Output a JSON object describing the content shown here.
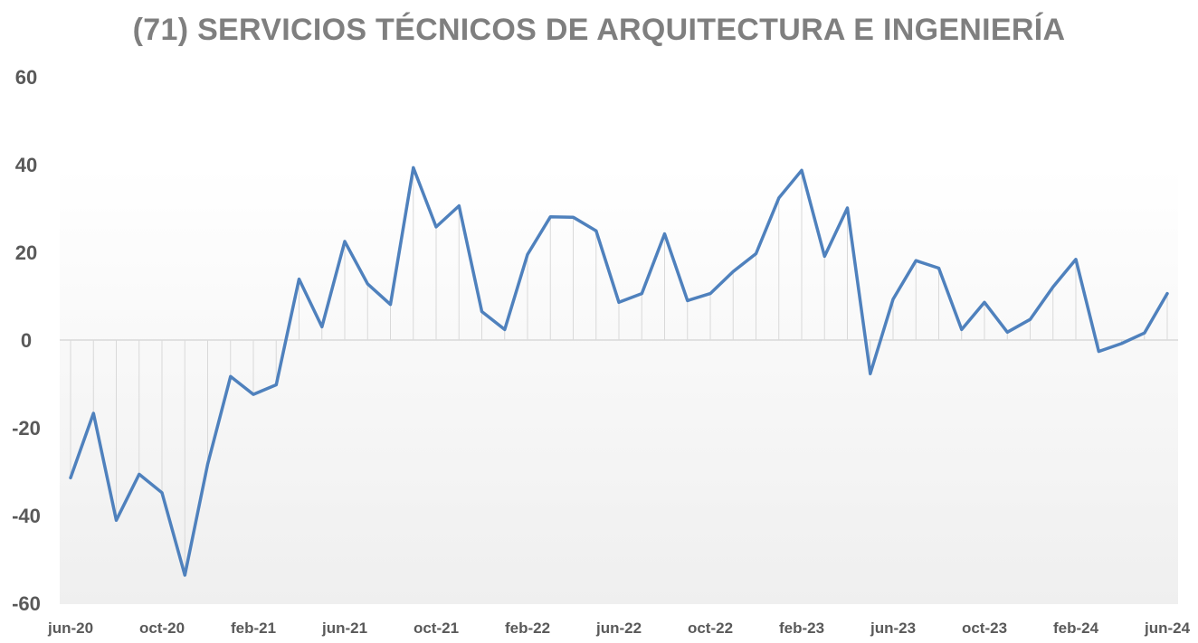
{
  "chart_data": {
    "type": "line",
    "title": "(71) SERVICIOS TÉCNICOS DE ARQUITECTURA E INGENIERÍA",
    "xlabel": "",
    "ylabel": "",
    "ylim": [
      -60,
      60
    ],
    "yticks": [
      60,
      40,
      20,
      0,
      -20,
      -40,
      -60
    ],
    "x_tick_labels": [
      "jun-20",
      "oct-20",
      "feb-21",
      "jun-21",
      "oct-21",
      "feb-22",
      "jun-22",
      "oct-22",
      "feb-23",
      "jun-23",
      "oct-23",
      "feb-24",
      "jun-24"
    ],
    "grid": false,
    "drop_lines": true,
    "colors": {
      "line": "#4f81bd",
      "dropline": "#d9d9d9",
      "zero_line": "#d9d9d9",
      "title": "#7f7f7f",
      "ticks": "#595959"
    },
    "x": [
      "jun-20",
      "jul-20",
      "ago-20",
      "sep-20",
      "oct-20",
      "nov-20",
      "dic-20",
      "ene-21",
      "feb-21",
      "mar-21",
      "abr-21",
      "may-21",
      "jun-21",
      "jul-21",
      "ago-21",
      "sep-21",
      "oct-21",
      "nov-21",
      "dic-21",
      "ene-22",
      "feb-22",
      "mar-22",
      "abr-22",
      "may-22",
      "jun-22",
      "jul-22",
      "ago-22",
      "sep-22",
      "oct-22",
      "nov-22",
      "dic-22",
      "ene-23",
      "feb-23",
      "mar-23",
      "abr-23",
      "may-23",
      "jun-23",
      "jul-23",
      "ago-23",
      "sep-23",
      "oct-23",
      "nov-23",
      "dic-23",
      "ene-24",
      "feb-24",
      "mar-24",
      "abr-24",
      "may-24",
      "jun-24"
    ],
    "series": [
      {
        "values": [
          -31.4,
          -16.7,
          -41.1,
          -30.6,
          -34.8,
          -53.6,
          -28.3,
          -8.3,
          -12.4,
          -10.2,
          13.9,
          3.0,
          22.5,
          12.8,
          8.1,
          39.3,
          25.8,
          30.6,
          6.5,
          2.4,
          19.5,
          28.1,
          28.0,
          24.9,
          8.6,
          10.6,
          24.2,
          9.0,
          10.6,
          15.6,
          19.7,
          32.4,
          38.7,
          19.1,
          30.1,
          -7.7,
          9.3,
          18.1,
          16.4,
          2.4,
          8.6,
          1.8,
          4.7,
          12.1,
          18.4,
          -2.6,
          -0.8,
          1.6,
          10.6
        ]
      }
    ]
  }
}
